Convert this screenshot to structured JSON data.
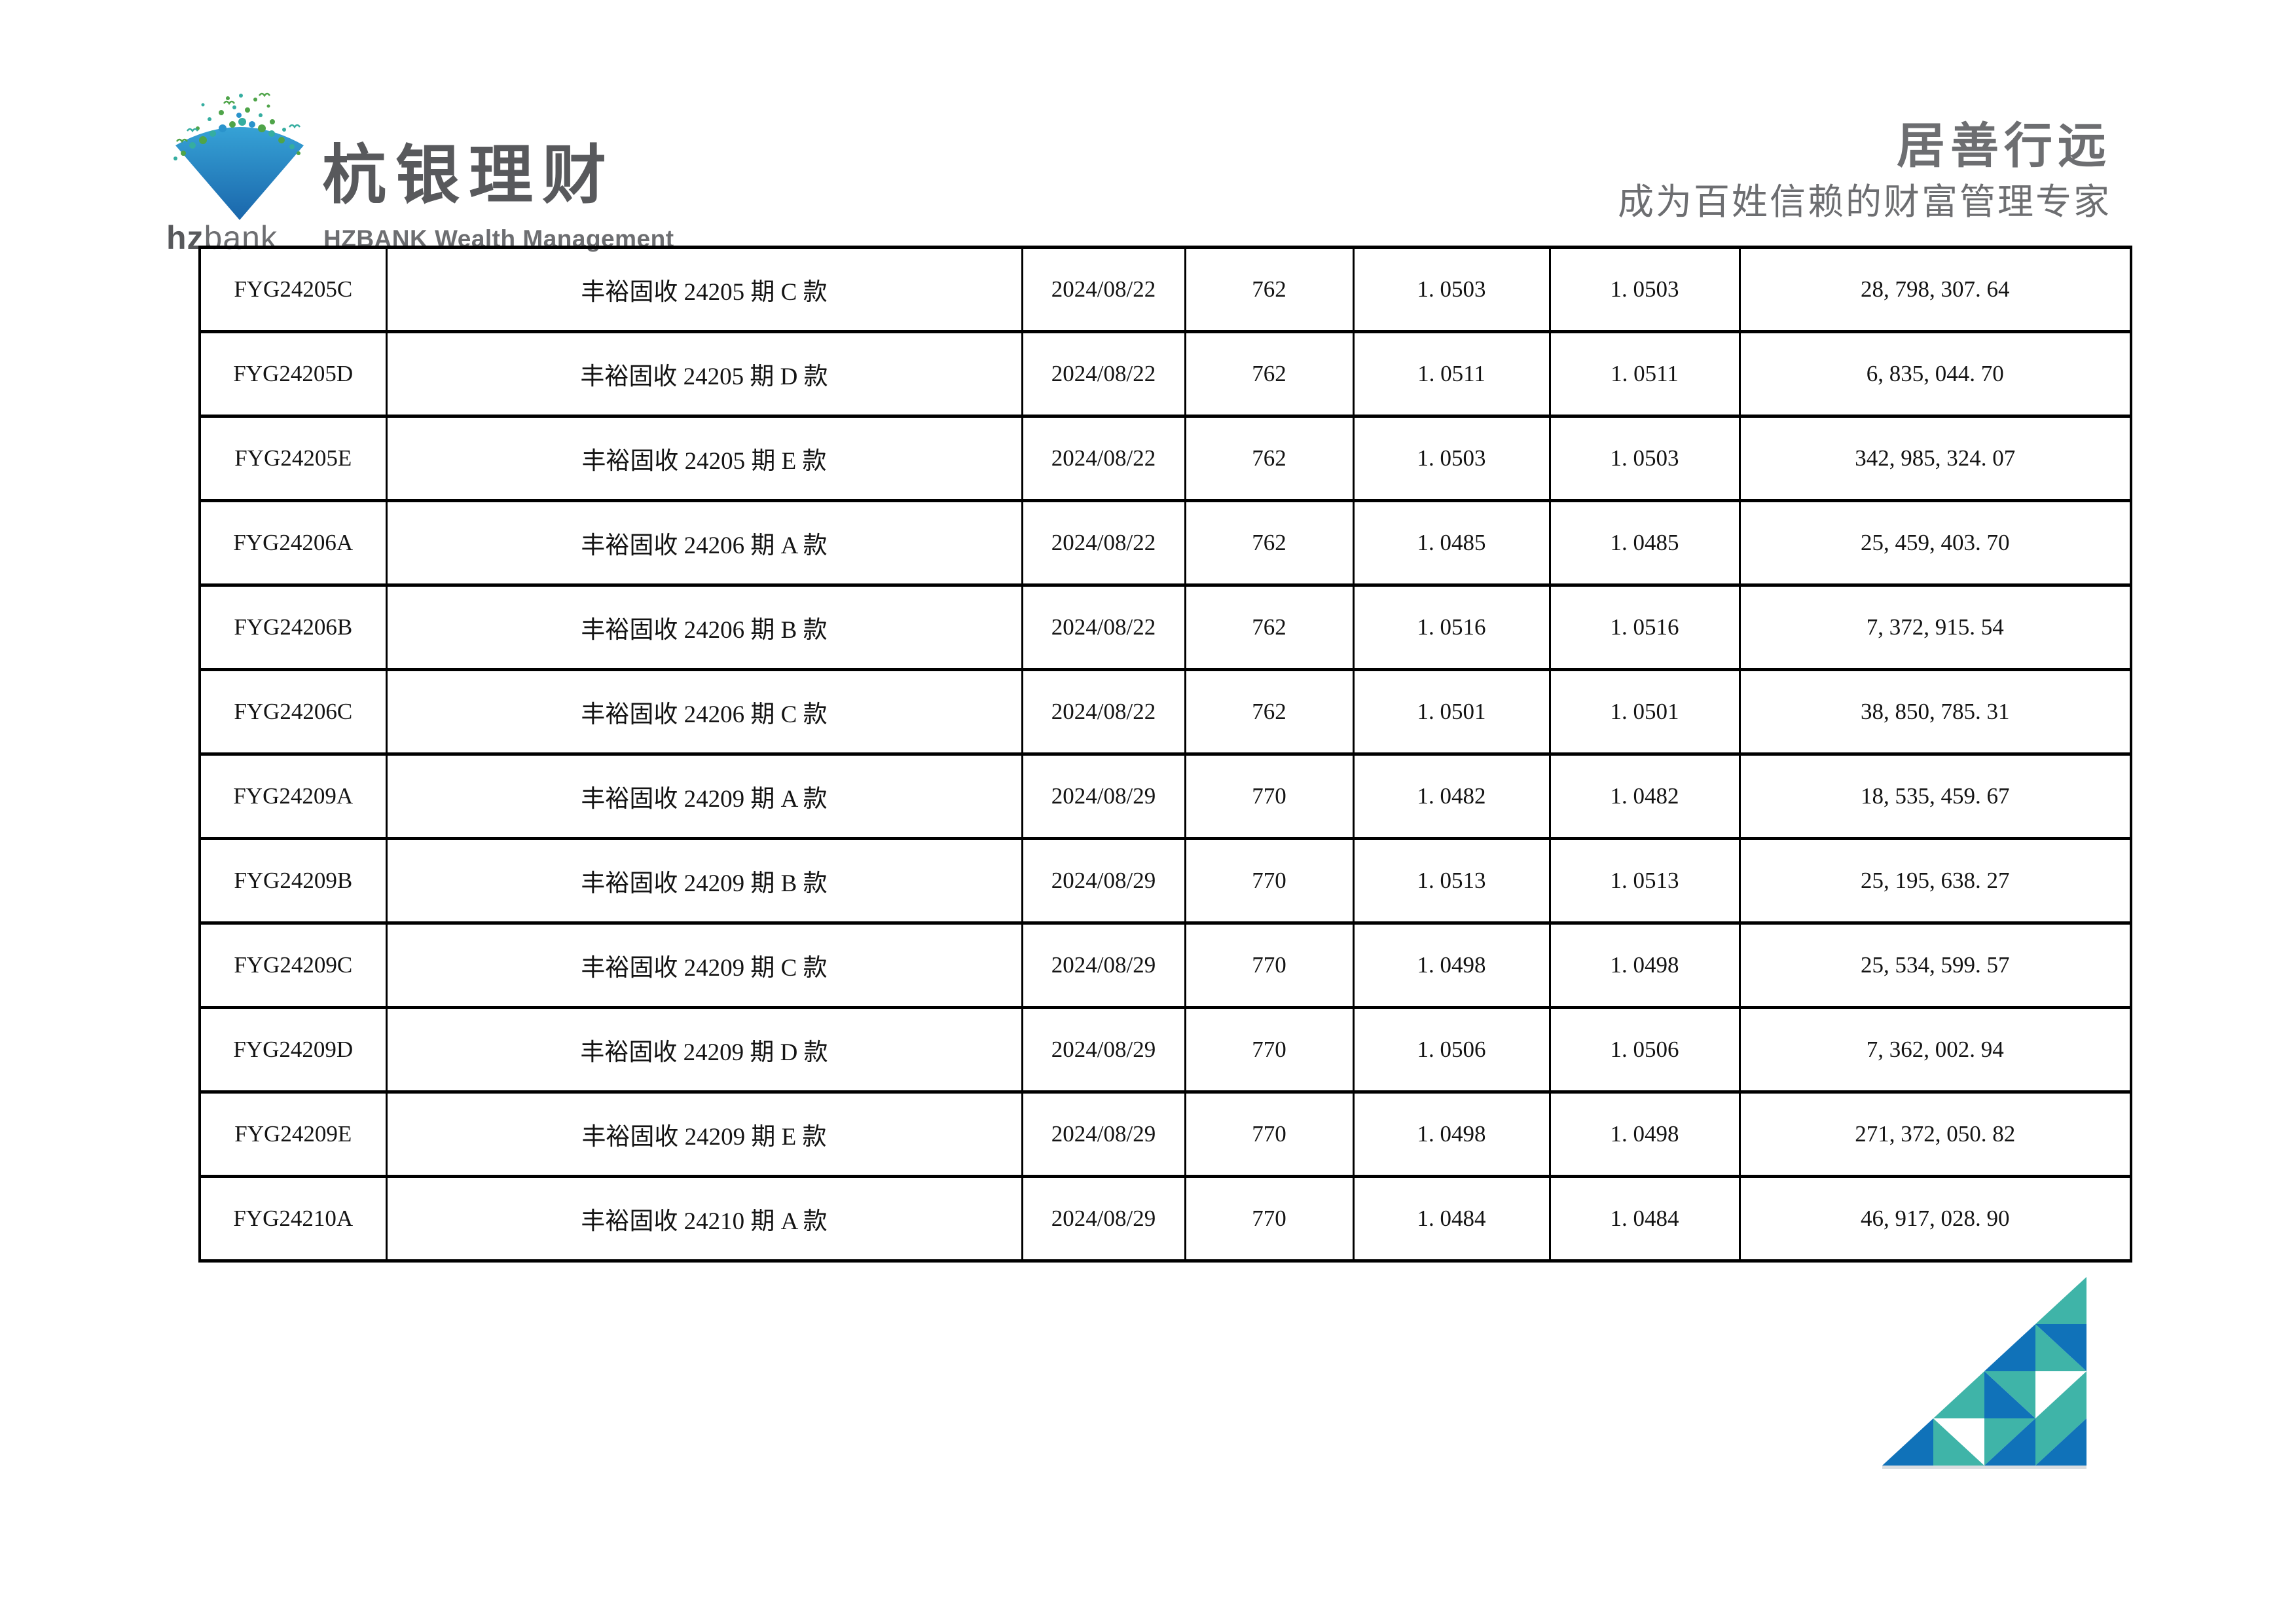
{
  "header": {
    "logo": {
      "bank_name_bold": "hz",
      "bank_name_light": "bank",
      "brand_cjk": "杭银理财",
      "brand_en": "HZBANK Wealth Management"
    },
    "slogan_main": "居善行远",
    "slogan_sub": "成为百姓信赖的财富管理专家"
  },
  "table": {
    "rows": [
      {
        "code": "FYG24205C",
        "name": "丰裕固收 24205 期 C 款",
        "date": "2024/08/22",
        "num": "762",
        "nav": "1. 0503",
        "cum_nav": "1. 0503",
        "amount": "28, 798, 307. 64"
      },
      {
        "code": "FYG24205D",
        "name": "丰裕固收 24205 期 D 款",
        "date": "2024/08/22",
        "num": "762",
        "nav": "1. 0511",
        "cum_nav": "1. 0511",
        "amount": "6, 835, 044. 70"
      },
      {
        "code": "FYG24205E",
        "name": "丰裕固收 24205 期 E 款",
        "date": "2024/08/22",
        "num": "762",
        "nav": "1. 0503",
        "cum_nav": "1. 0503",
        "amount": "342, 985, 324. 07"
      },
      {
        "code": "FYG24206A",
        "name": "丰裕固收 24206 期 A 款",
        "date": "2024/08/22",
        "num": "762",
        "nav": "1. 0485",
        "cum_nav": "1. 0485",
        "amount": "25, 459, 403. 70"
      },
      {
        "code": "FYG24206B",
        "name": "丰裕固收 24206 期 B 款",
        "date": "2024/08/22",
        "num": "762",
        "nav": "1. 0516",
        "cum_nav": "1. 0516",
        "amount": "7, 372, 915. 54"
      },
      {
        "code": "FYG24206C",
        "name": "丰裕固收 24206 期 C 款",
        "date": "2024/08/22",
        "num": "762",
        "nav": "1. 0501",
        "cum_nav": "1. 0501",
        "amount": "38, 850, 785. 31"
      },
      {
        "code": "FYG24209A",
        "name": "丰裕固收 24209 期 A 款",
        "date": "2024/08/29",
        "num": "770",
        "nav": "1. 0482",
        "cum_nav": "1. 0482",
        "amount": "18, 535, 459. 67"
      },
      {
        "code": "FYG24209B",
        "name": "丰裕固收 24209 期 B 款",
        "date": "2024/08/29",
        "num": "770",
        "nav": "1. 0513",
        "cum_nav": "1. 0513",
        "amount": "25, 195, 638. 27"
      },
      {
        "code": "FYG24209C",
        "name": "丰裕固收 24209 期 C 款",
        "date": "2024/08/29",
        "num": "770",
        "nav": "1. 0498",
        "cum_nav": "1. 0498",
        "amount": "25, 534, 599. 57"
      },
      {
        "code": "FYG24209D",
        "name": "丰裕固收 24209 期 D 款",
        "date": "2024/08/29",
        "num": "770",
        "nav": "1. 0506",
        "cum_nav": "1. 0506",
        "amount": "7, 362, 002. 94"
      },
      {
        "code": "FYG24209E",
        "name": "丰裕固收 24209 期 E 款",
        "date": "2024/08/29",
        "num": "770",
        "nav": "1. 0498",
        "cum_nav": "1. 0498",
        "amount": "271, 372, 050. 82"
      },
      {
        "code": "FYG24210A",
        "name": "丰裕固收 24210 期 A 款",
        "date": "2024/08/29",
        "num": "770",
        "nav": "1. 0484",
        "cum_nav": "1. 0484",
        "amount": "46, 917, 028. 90"
      }
    ]
  },
  "colors": {
    "text": "#141414",
    "brand_gray": "#58595c",
    "slogan_gray": "#6d6e71",
    "teal": "#3FB4A8",
    "blue": "#1072B9",
    "white": "#FFFFFF",
    "baseline_gray": "#D9DDE0",
    "logo_blue_light": "#36A2D6",
    "logo_blue_dark": "#1A66AB",
    "splash_green": "#4FA449",
    "splash_teal": "#35ADA0",
    "splash_blue": "#2A93CC"
  }
}
